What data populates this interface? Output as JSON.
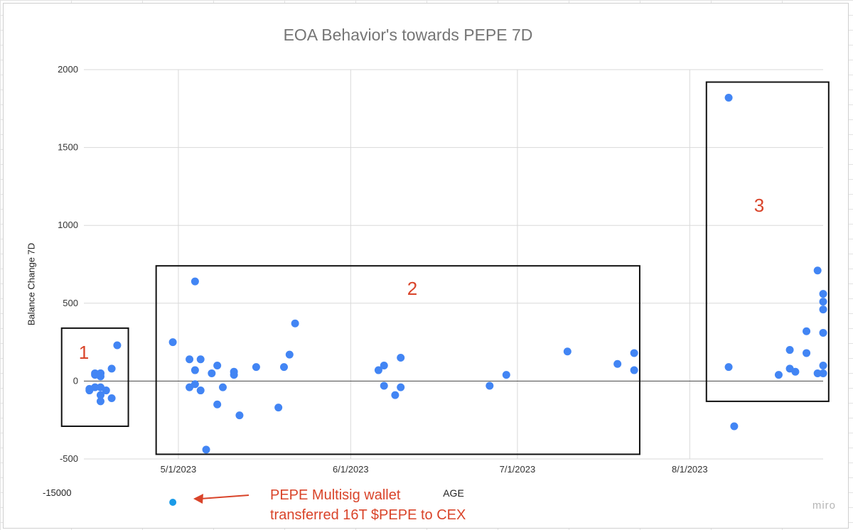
{
  "chart_data": {
    "type": "scatter",
    "title": "EOA Behavior's towards PEPE 7D",
    "xlabel": "AGE",
    "ylabel": "Balance Change 7D",
    "y_ticks": [
      "2000",
      "1500",
      "1000",
      "500",
      "0",
      "-500"
    ],
    "x_ticks": [
      "5/1/2023",
      "6/1/2023",
      "7/1/2023",
      "8/1/2023"
    ],
    "x_tick_days": [
      17,
      48,
      78,
      109
    ],
    "ylim": [
      -500,
      2000
    ],
    "xlim_days": [
      0,
      133
    ],
    "x_origin_note_excluded": true,
    "outlier_y_tick": "-15000",
    "point_color": "#4285f4",
    "points": [
      [
        1,
        -50
      ],
      [
        1,
        -60
      ],
      [
        2,
        50
      ],
      [
        2,
        -40
      ],
      [
        3,
        50
      ],
      [
        3,
        30
      ],
      [
        3,
        -40
      ],
      [
        3,
        -90
      ],
      [
        3,
        -130
      ],
      [
        2,
        40
      ],
      [
        4,
        -60
      ],
      [
        3,
        50
      ],
      [
        5,
        80
      ],
      [
        5,
        -110
      ],
      [
        6,
        230
      ],
      [
        16,
        250
      ],
      [
        19,
        140
      ],
      [
        19,
        -40
      ],
      [
        20,
        640
      ],
      [
        20,
        70
      ],
      [
        20,
        -20
      ],
      [
        21,
        -60
      ],
      [
        21,
        140
      ],
      [
        22,
        -440
      ],
      [
        23,
        50
      ],
      [
        24,
        100
      ],
      [
        24,
        -150
      ],
      [
        25,
        -40
      ],
      [
        27,
        60
      ],
      [
        27,
        40
      ],
      [
        28,
        -220
      ],
      [
        31,
        90
      ],
      [
        35,
        -170
      ],
      [
        36,
        90
      ],
      [
        37,
        170
      ],
      [
        38,
        370
      ],
      [
        53,
        70
      ],
      [
        54,
        100
      ],
      [
        54,
        -30
      ],
      [
        56,
        -90
      ],
      [
        57,
        150
      ],
      [
        57,
        -40
      ],
      [
        73,
        -30
      ],
      [
        76,
        40
      ],
      [
        87,
        190
      ],
      [
        96,
        110
      ],
      [
        99,
        180
      ],
      [
        99,
        70
      ],
      [
        116,
        1820
      ],
      [
        116,
        90
      ],
      [
        117,
        -290
      ],
      [
        125,
        40
      ],
      [
        127,
        200
      ],
      [
        127,
        80
      ],
      [
        128,
        60
      ],
      [
        130,
        320
      ],
      [
        130,
        180
      ],
      [
        132,
        710
      ],
      [
        133,
        560
      ],
      [
        133,
        510
      ],
      [
        133,
        460
      ],
      [
        133,
        310
      ],
      [
        133,
        100
      ],
      [
        132,
        50
      ],
      [
        133,
        50
      ]
    ],
    "groups": [
      {
        "label": "1",
        "x_range_days": [
          -4,
          8
        ],
        "y_range": [
          -290,
          340
        ]
      },
      {
        "label": "2",
        "x_range_days": [
          13,
          100
        ],
        "y_range": [
          -470,
          740
        ]
      },
      {
        "label": "3",
        "x_range_days": [
          112,
          134
        ],
        "y_range": [
          -130,
          1920
        ]
      }
    ],
    "outlier_point": {
      "x_day": 16,
      "y": -15000,
      "color": "#1a9be8"
    }
  },
  "annotation": {
    "line1": "PEPE Multisig wallet",
    "line2": "transferred 16T $PEPE to CEX",
    "color": "#d9442a"
  },
  "watermark": "miro"
}
